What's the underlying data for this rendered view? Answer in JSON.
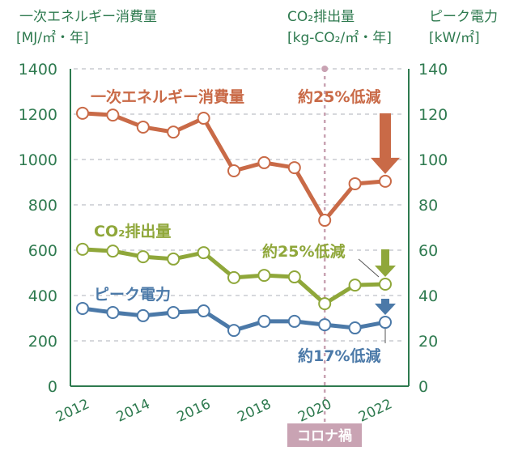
{
  "chart_data": {
    "type": "line",
    "title": "",
    "x": [
      2012,
      2013,
      2014,
      2015,
      2016,
      2017,
      2018,
      2019,
      2020,
      2021,
      2022
    ],
    "xticks": [
      "2012",
      "2014",
      "2016",
      "2018",
      "2020",
      "2022"
    ],
    "xlim": [
      2011.6,
      2022.7
    ],
    "left_axis": {
      "label_line1": "一次エネルギー消費量",
      "label_line2": "[MJ/㎡・年]",
      "ylim": [
        0,
        1400
      ],
      "ticks": [
        "0",
        "200",
        "400",
        "600",
        "800",
        "1000",
        "1200",
        "1400"
      ],
      "tick_values": [
        0,
        200,
        400,
        600,
        800,
        1000,
        1200,
        1400
      ]
    },
    "right_axis_co2": {
      "label_line1": "CO₂排出量",
      "label_line2": "[kg-CO₂/㎡・年]"
    },
    "right_axis_peak": {
      "label_line1": "ピーク電力",
      "label_line2": "[kW/㎡]"
    },
    "right_axis": {
      "ylim": [
        0,
        140
      ],
      "ticks": [
        "0",
        "20",
        "40",
        "60",
        "80",
        "100",
        "120",
        "140"
      ],
      "tick_values": [
        0,
        20,
        40,
        60,
        80,
        100,
        120,
        140
      ]
    },
    "grid": true,
    "series": [
      {
        "name": "一次エネルギー消費量",
        "axis": "left",
        "color": "#c96a47",
        "values": [
          1204,
          1196,
          1143,
          1121,
          1182,
          950,
          986,
          964,
          732,
          893,
          904
        ],
        "annotation": "約25%低減"
      },
      {
        "name": "CO₂排出量",
        "axis": "right",
        "color": "#8fa73a",
        "values": [
          60.4,
          59.6,
          57.1,
          56.1,
          58.9,
          47.9,
          48.9,
          48.2,
          36.4,
          44.6,
          45.0
        ],
        "annotation": "約25%低減"
      },
      {
        "name": "ピーク電力",
        "axis": "right",
        "color": "#4b79a8",
        "values": [
          34.3,
          32.5,
          31.1,
          32.5,
          33.2,
          24.6,
          28.6,
          28.6,
          27.1,
          25.7,
          28.2
        ],
        "annotation": "約17%低減"
      }
    ],
    "event_marker": {
      "x": 2020,
      "label": "コロナ禍",
      "color": "#c9a3b3"
    },
    "axis_color": "#2e7a4f"
  }
}
